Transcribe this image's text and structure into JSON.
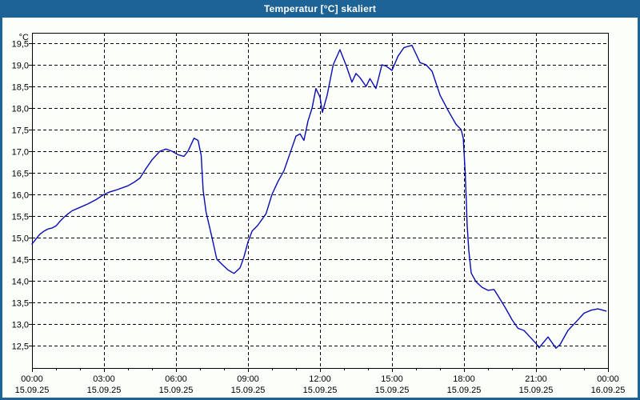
{
  "window": {
    "title": "Temperatur [°C] skaliert"
  },
  "colors": {
    "titlebar": "#1e6396",
    "window_border": "#1e6396",
    "background": "#fcfefa",
    "grid": "#000000",
    "text": "#000000",
    "line": "#0a0ab4"
  },
  "chart_data": {
    "type": "line",
    "title": "Temperatur [°C] skaliert",
    "unit_label": "°C",
    "grid": "dashed",
    "legend": "none",
    "y_axis": {
      "min": 12.0,
      "max": 19.74,
      "tick_step": 0.5,
      "ticks": [
        {
          "value": 19.5,
          "label": "19,5"
        },
        {
          "value": 19.0,
          "label": "19,0"
        },
        {
          "value": 18.5,
          "label": "18,5"
        },
        {
          "value": 18.0,
          "label": "18,0"
        },
        {
          "value": 17.5,
          "label": "17,5"
        },
        {
          "value": 17.0,
          "label": "17,0"
        },
        {
          "value": 16.5,
          "label": "16,5"
        },
        {
          "value": 16.0,
          "label": "16,0"
        },
        {
          "value": 15.5,
          "label": "15,5"
        },
        {
          "value": 15.0,
          "label": "15,0"
        },
        {
          "value": 14.5,
          "label": "14,5"
        },
        {
          "value": 14.0,
          "label": "14,0"
        },
        {
          "value": 13.5,
          "label": "13,5"
        },
        {
          "value": 13.0,
          "label": "13,0"
        },
        {
          "value": 12.5,
          "label": "12,5"
        }
      ]
    },
    "x_axis": {
      "unit": "hours",
      "min_hour": 0,
      "max_hour": 24,
      "minor_tick_every_hours": 1,
      "major_ticks": [
        {
          "hour": 0,
          "time": "00:00",
          "date": "15.09.25"
        },
        {
          "hour": 3,
          "time": "03:00",
          "date": "15.09.25"
        },
        {
          "hour": 6,
          "time": "06:00",
          "date": "15.09.25"
        },
        {
          "hour": 9,
          "time": "09:00",
          "date": "15.09.25"
        },
        {
          "hour": 12,
          "time": "12:00",
          "date": "15.09.25"
        },
        {
          "hour": 15,
          "time": "15:00",
          "date": "15.09.25"
        },
        {
          "hour": 18,
          "time": "18:00",
          "date": "15.09.25"
        },
        {
          "hour": 21,
          "time": "21:00",
          "date": "15.09.25"
        },
        {
          "hour": 24,
          "time": "00:00",
          "date": "16.09.25"
        }
      ]
    },
    "series": [
      {
        "name": "Temperatur",
        "color": "#0a0ab4",
        "points": [
          [
            0.0,
            14.85
          ],
          [
            0.17,
            14.97
          ],
          [
            0.33,
            15.08
          ],
          [
            0.5,
            15.15
          ],
          [
            0.67,
            15.2
          ],
          [
            0.83,
            15.22
          ],
          [
            1.0,
            15.27
          ],
          [
            1.17,
            15.38
          ],
          [
            1.33,
            15.47
          ],
          [
            1.5,
            15.55
          ],
          [
            1.67,
            15.62
          ],
          [
            2.0,
            15.7
          ],
          [
            2.33,
            15.78
          ],
          [
            2.67,
            15.88
          ],
          [
            3.0,
            16.0
          ],
          [
            3.25,
            16.06
          ],
          [
            3.5,
            16.1
          ],
          [
            4.0,
            16.2
          ],
          [
            4.25,
            16.28
          ],
          [
            4.5,
            16.38
          ],
          [
            4.75,
            16.6
          ],
          [
            5.0,
            16.8
          ],
          [
            5.33,
            17.0
          ],
          [
            5.58,
            17.05
          ],
          [
            5.83,
            17.0
          ],
          [
            6.08,
            16.92
          ],
          [
            6.33,
            16.88
          ],
          [
            6.5,
            17.0
          ],
          [
            6.75,
            17.3
          ],
          [
            6.92,
            17.25
          ],
          [
            7.05,
            16.9
          ],
          [
            7.13,
            16.1
          ],
          [
            7.25,
            15.6
          ],
          [
            7.5,
            15.0
          ],
          [
            7.7,
            14.5
          ],
          [
            7.92,
            14.38
          ],
          [
            8.17,
            14.25
          ],
          [
            8.42,
            14.17
          ],
          [
            8.67,
            14.3
          ],
          [
            8.83,
            14.55
          ],
          [
            9.0,
            14.9
          ],
          [
            9.17,
            15.15
          ],
          [
            9.4,
            15.28
          ],
          [
            9.75,
            15.55
          ],
          [
            10.0,
            16.0
          ],
          [
            10.25,
            16.3
          ],
          [
            10.5,
            16.55
          ],
          [
            10.75,
            16.95
          ],
          [
            11.0,
            17.35
          ],
          [
            11.17,
            17.4
          ],
          [
            11.33,
            17.25
          ],
          [
            11.5,
            17.7
          ],
          [
            11.67,
            18.0
          ],
          [
            11.83,
            18.45
          ],
          [
            12.0,
            18.25
          ],
          [
            12.1,
            17.9
          ],
          [
            12.3,
            18.3
          ],
          [
            12.55,
            19.0
          ],
          [
            12.83,
            19.35
          ],
          [
            13.08,
            19.0
          ],
          [
            13.33,
            18.6
          ],
          [
            13.5,
            18.8
          ],
          [
            13.67,
            18.7
          ],
          [
            13.92,
            18.5
          ],
          [
            14.08,
            18.68
          ],
          [
            14.33,
            18.45
          ],
          [
            14.58,
            19.0
          ],
          [
            14.75,
            18.97
          ],
          [
            15.0,
            18.87
          ],
          [
            15.25,
            19.2
          ],
          [
            15.5,
            19.4
          ],
          [
            15.83,
            19.45
          ],
          [
            16.0,
            19.25
          ],
          [
            16.17,
            19.05
          ],
          [
            16.42,
            19.0
          ],
          [
            16.67,
            18.85
          ],
          [
            17.0,
            18.3
          ],
          [
            17.33,
            17.95
          ],
          [
            17.67,
            17.62
          ],
          [
            17.88,
            17.5
          ],
          [
            17.97,
            17.3
          ],
          [
            18.05,
            16.5
          ],
          [
            18.1,
            15.8
          ],
          [
            18.13,
            15.3
          ],
          [
            18.2,
            14.7
          ],
          [
            18.3,
            14.18
          ],
          [
            18.5,
            13.98
          ],
          [
            18.75,
            13.85
          ],
          [
            19.0,
            13.78
          ],
          [
            19.25,
            13.8
          ],
          [
            19.5,
            13.58
          ],
          [
            19.75,
            13.35
          ],
          [
            20.0,
            13.1
          ],
          [
            20.25,
            12.9
          ],
          [
            20.5,
            12.85
          ],
          [
            20.75,
            12.7
          ],
          [
            21.0,
            12.55
          ],
          [
            21.13,
            12.45
          ],
          [
            21.5,
            12.7
          ],
          [
            21.83,
            12.44
          ],
          [
            22.0,
            12.52
          ],
          [
            22.33,
            12.85
          ],
          [
            22.67,
            13.05
          ],
          [
            23.0,
            13.25
          ],
          [
            23.3,
            13.32
          ],
          [
            23.58,
            13.35
          ],
          [
            23.92,
            13.3
          ]
        ]
      }
    ]
  }
}
